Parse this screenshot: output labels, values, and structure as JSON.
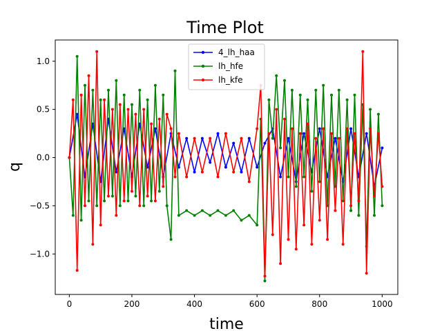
{
  "chart_data": {
    "type": "line",
    "title": "Time Plot",
    "xlabel": "time",
    "ylabel": "q",
    "xlim": [
      -45,
      1050
    ],
    "ylim": [
      -1.42,
      1.22
    ],
    "xticks": [
      0,
      200,
      400,
      600,
      800,
      1000
    ],
    "xtick_labels": [
      "0",
      "200",
      "400",
      "600",
      "800",
      "1000"
    ],
    "yticks": [
      -1.0,
      -0.5,
      0.0,
      0.5,
      1.0
    ],
    "ytick_labels": [
      "−1.0",
      "−0.5",
      "0.0",
      "0.5",
      "1.0"
    ],
    "grid": false,
    "legend_position": "top-center",
    "series": [
      {
        "name": "4_lh_haa",
        "color": "#0000ff",
        "x": [
          0,
          25,
          50,
          75,
          100,
          125,
          150,
          175,
          200,
          225,
          250,
          275,
          300,
          325,
          350,
          375,
          400,
          425,
          450,
          475,
          500,
          525,
          550,
          575,
          600,
          625,
          650,
          675,
          700,
          725,
          750,
          775,
          800,
          825,
          850,
          875,
          900,
          925,
          950,
          975,
          1000
        ],
        "values": [
          0.0,
          0.45,
          -0.2,
          0.35,
          -0.25,
          0.4,
          -0.15,
          0.3,
          -0.2,
          0.35,
          -0.1,
          0.3,
          -0.2,
          0.25,
          -0.1,
          0.2,
          -0.15,
          0.2,
          -0.05,
          0.25,
          -0.1,
          0.15,
          -0.15,
          0.2,
          -0.1,
          0.15,
          0.3,
          -0.2,
          0.2,
          -0.25,
          0.25,
          -0.15,
          0.3,
          -0.2,
          0.2,
          -0.25,
          0.3,
          -0.2,
          0.25,
          -0.3,
          0.1
        ]
      },
      {
        "name": "lh_hfe",
        "color": "#008000",
        "x": [
          0,
          12,
          25,
          38,
          50,
          62,
          75,
          88,
          100,
          112,
          125,
          138,
          150,
          162,
          175,
          188,
          200,
          212,
          225,
          238,
          250,
          262,
          275,
          288,
          300,
          312,
          325,
          338,
          350,
          375,
          400,
          425,
          450,
          475,
          500,
          525,
          550,
          575,
          600,
          612,
          625,
          638,
          650,
          662,
          675,
          688,
          700,
          712,
          725,
          738,
          750,
          762,
          775,
          788,
          800,
          812,
          825,
          838,
          850,
          862,
          875,
          888,
          900,
          912,
          925,
          938,
          950,
          962,
          975,
          988,
          1000
        ],
        "values": [
          0.0,
          -0.6,
          1.05,
          -0.65,
          0.75,
          -0.45,
          0.7,
          -0.5,
          0.6,
          -0.45,
          0.7,
          -0.4,
          0.8,
          -0.5,
          0.65,
          -0.45,
          0.55,
          -0.4,
          0.7,
          -0.5,
          0.6,
          -0.45,
          0.75,
          -0.35,
          0.65,
          -0.5,
          -0.85,
          0.9,
          -0.6,
          -0.55,
          -0.6,
          -0.55,
          -0.6,
          -0.55,
          -0.6,
          -0.55,
          -0.65,
          -0.6,
          -0.7,
          0.4,
          -1.28,
          0.6,
          0.2,
          0.85,
          0.1,
          0.8,
          -0.2,
          0.7,
          -0.3,
          0.65,
          -0.2,
          0.6,
          -0.35,
          0.7,
          -0.25,
          0.75,
          -0.5,
          0.65,
          -0.3,
          0.7,
          -0.45,
          0.6,
          -0.55,
          0.65,
          -0.6,
          0.55,
          -0.92,
          0.5,
          -0.6,
          0.45,
          -0.5
        ]
      },
      {
        "name": "lh_kfe",
        "color": "#ff0000",
        "x": [
          0,
          12,
          25,
          38,
          50,
          62,
          75,
          88,
          100,
          112,
          125,
          138,
          150,
          162,
          175,
          188,
          200,
          212,
          225,
          238,
          250,
          262,
          275,
          288,
          300,
          312,
          325,
          338,
          350,
          375,
          400,
          425,
          450,
          475,
          500,
          525,
          550,
          575,
          600,
          612,
          625,
          638,
          650,
          662,
          675,
          688,
          700,
          712,
          725,
          738,
          750,
          762,
          775,
          788,
          800,
          812,
          825,
          838,
          850,
          862,
          875,
          888,
          900,
          912,
          925,
          938,
          950,
          962,
          975,
          988,
          1000
        ],
        "values": [
          0.0,
          0.6,
          -1.17,
          0.65,
          -0.5,
          0.85,
          -0.9,
          1.1,
          -0.7,
          0.6,
          -0.4,
          0.5,
          -0.6,
          0.55,
          -0.45,
          0.5,
          -0.35,
          0.45,
          -0.5,
          0.5,
          -0.4,
          0.35,
          -0.45,
          0.4,
          -0.3,
          0.45,
          0.3,
          -0.2,
          0.25,
          -0.2,
          0.2,
          -0.15,
          0.2,
          -0.2,
          0.25,
          -0.15,
          0.2,
          -0.25,
          0.3,
          0.75,
          -1.23,
          0.25,
          -0.8,
          0.5,
          -1.1,
          0.4,
          -0.85,
          0.3,
          -0.95,
          0.25,
          -0.7,
          0.35,
          -0.9,
          0.2,
          -0.65,
          0.3,
          -0.85,
          0.25,
          -0.55,
          0.2,
          -0.9,
          0.3,
          -0.5,
          0.25,
          -0.45,
          1.1,
          -1.2,
          0.3,
          -0.4,
          0.25,
          -0.3
        ]
      }
    ]
  }
}
